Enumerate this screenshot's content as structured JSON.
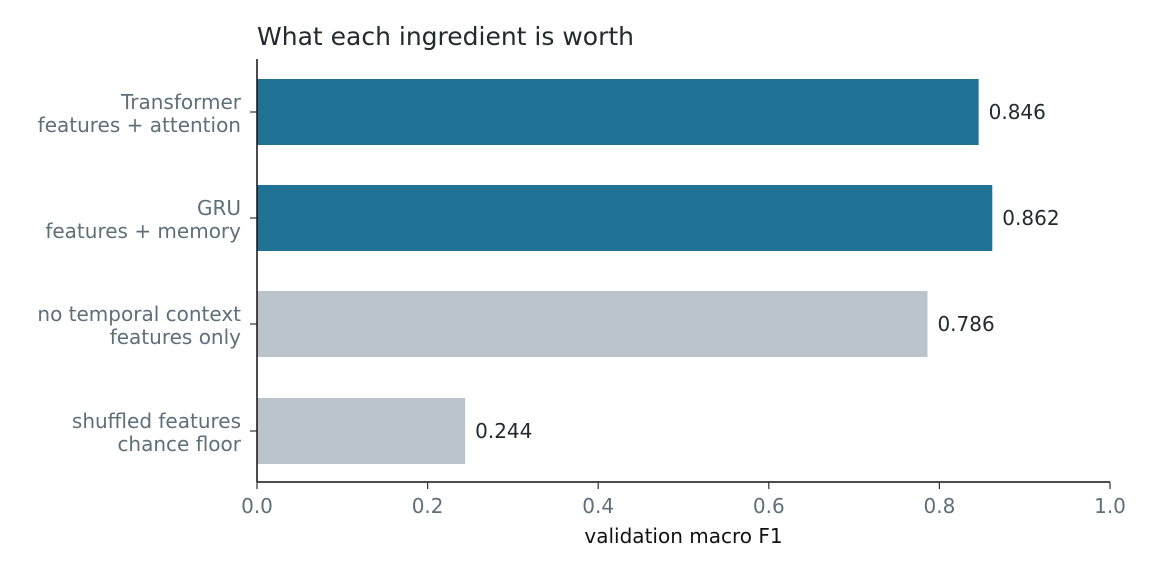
{
  "chart_data": {
    "type": "bar",
    "orientation": "horizontal",
    "title": "What each ingredient is worth",
    "xlabel": "validation macro F1",
    "ylabel": "",
    "xlim": [
      0,
      1
    ],
    "xticks": [
      0.0,
      0.2,
      0.4,
      0.6,
      0.8,
      1.0
    ],
    "xtick_labels": [
      "0.0",
      "0.2",
      "0.4",
      "0.6",
      "0.8",
      "1.0"
    ],
    "grid": false,
    "categories": [
      {
        "line1": "Transformer",
        "line2": "features + attention"
      },
      {
        "line1": "GRU",
        "line2": "features + memory"
      },
      {
        "line1": "no temporal context",
        "line2": "features only"
      },
      {
        "line1": "shuffled features",
        "line2": "chance floor"
      }
    ],
    "values": [
      0.846,
      0.862,
      0.786,
      0.244
    ],
    "value_labels": [
      "0.846",
      "0.862",
      "0.786",
      "0.244"
    ],
    "colors": [
      "#1f7294",
      "#1f7294",
      "#bbc4ca",
      "#bbc4ca"
    ]
  }
}
